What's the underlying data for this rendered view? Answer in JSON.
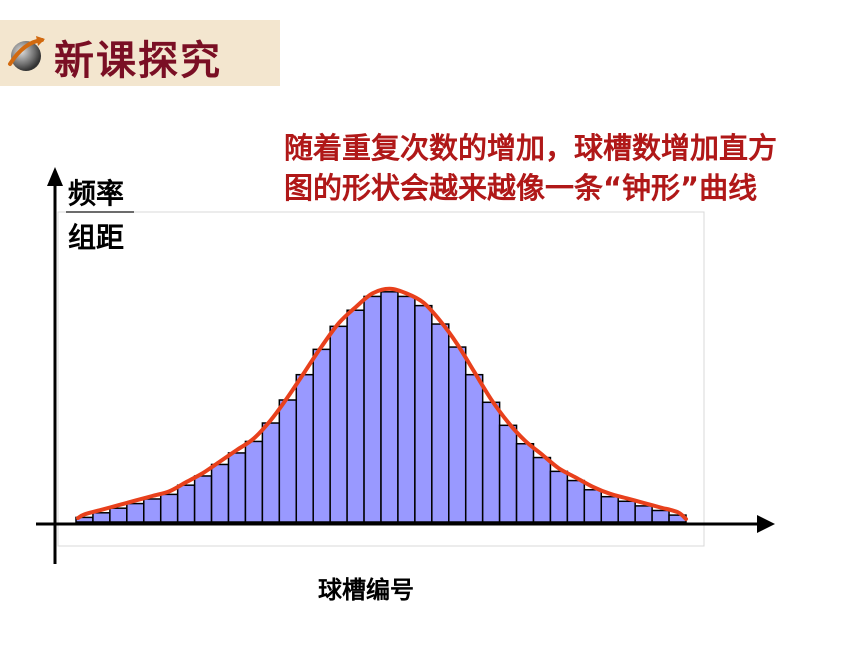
{
  "header": {
    "title": "新课探究",
    "icon": "globe-arrow-icon"
  },
  "note": "随着重复次数的增加，球槽数增加直方图的形状会越来越像一条“钟形”曲线",
  "chart_data": {
    "type": "bar",
    "title": "",
    "xlabel": "球槽编号",
    "ylabel_numerator": "频率",
    "ylabel_denominator": "组距",
    "series": [
      {
        "name": "",
        "values": [
          0.02,
          0.04,
          0.06,
          0.08,
          0.1,
          0.12,
          0.16,
          0.2,
          0.25,
          0.3,
          0.35,
          0.43,
          0.53,
          0.64,
          0.75,
          0.85,
          0.92,
          0.98,
          1.0,
          0.98,
          0.94,
          0.86,
          0.76,
          0.64,
          0.52,
          0.42,
          0.34,
          0.28,
          0.22,
          0.18,
          0.14,
          0.11,
          0.09,
          0.07,
          0.05,
          0.03
        ],
        "color": "#9999ff"
      }
    ],
    "curve": {
      "color": "#e8401c"
    },
    "ylim": [
      0,
      1.06
    ],
    "grid": false
  }
}
